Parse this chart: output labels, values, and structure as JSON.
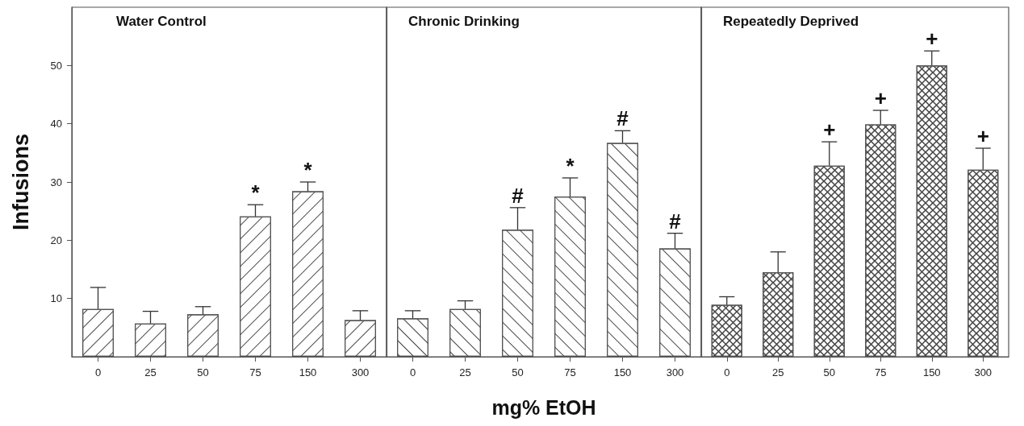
{
  "chart_data": [
    {
      "type": "bar",
      "title": "Water Control",
      "ylabel": "Infusions",
      "categories": [
        "0",
        "25",
        "50",
        "75",
        "150",
        "300"
      ],
      "values": [
        8.2,
        5.7,
        7.3,
        24.1,
        28.4,
        6.3
      ],
      "color": "#ffffff",
      "errors": [
        [
          8.2,
          11.9
        ],
        [
          5.7,
          7.8
        ],
        [
          7.3,
          8.6
        ],
        [
          24.1,
          26.1
        ],
        [
          28.4,
          30.0
        ],
        [
          6.3,
          7.9
        ]
      ],
      "ylim": [
        0,
        60
      ],
      "yticks": [
        10,
        20,
        30,
        40,
        50
      ],
      "grid": false,
      "annotations": [
        {
          "text": "*",
          "x": "75",
          "y": 26.1
        },
        {
          "text": "*",
          "x": "150",
          "y": 30.0
        }
      ]
    },
    {
      "type": "bar",
      "title": "Chronic Drinking",
      "xlabel": "mg% EtOH",
      "categories": [
        "0",
        "25",
        "50",
        "75",
        "150",
        "300"
      ],
      "values": [
        6.6,
        8.2,
        21.8,
        27.5,
        36.7,
        18.6
      ],
      "color": "#ffffff",
      "errors": [
        [
          6.6,
          7.9
        ],
        [
          8.2,
          9.6
        ],
        [
          21.8,
          25.6
        ],
        [
          27.5,
          30.7
        ],
        [
          36.7,
          38.8
        ],
        [
          18.6,
          21.2
        ]
      ],
      "ylim": [
        0,
        60
      ],
      "tick_labels": "x",
      "grid": false,
      "annotations": [
        {
          "text": "#",
          "x": "50",
          "y": 25.6
        },
        {
          "text": "*",
          "x": "75",
          "y": 30.7
        },
        {
          "text": "#",
          "x": "150",
          "y": 38.8
        },
        {
          "text": "#",
          "x": "300",
          "y": 21.2
        }
      ]
    },
    {
      "type": "bar",
      "title": "Repeatedly Deprived",
      "categories": [
        "0",
        "25",
        "50",
        "75",
        "150",
        "300"
      ],
      "values": [
        8.9,
        14.5,
        32.8,
        39.9,
        50.0,
        32.1
      ],
      "color": "#ffffff",
      "errors": [
        [
          8.9,
          10.3
        ],
        [
          14.5,
          18.0
        ],
        [
          32.8,
          36.9
        ],
        [
          39.9,
          42.3
        ],
        [
          50.0,
          52.5
        ],
        [
          32.1,
          35.8
        ]
      ],
      "ylim": [
        0,
        60
      ],
      "tick_labels": "x",
      "grid": false,
      "annotations": [
        {
          "text": "+",
          "x": "50",
          "y": 36.9
        },
        {
          "text": "+",
          "x": "75",
          "y": 42.3
        },
        {
          "text": "+",
          "x": "150",
          "y": 52.5
        },
        {
          "text": "+",
          "x": "300",
          "y": 35.8
        }
      ]
    }
  ]
}
